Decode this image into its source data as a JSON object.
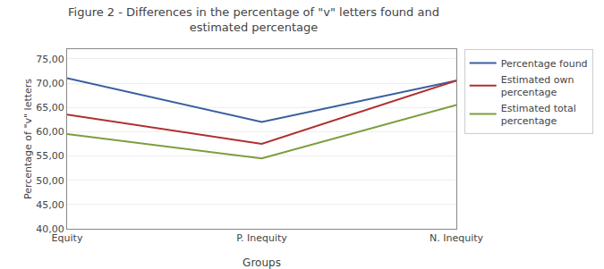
{
  "chart_data": {
    "type": "line",
    "title": "Figure 2 - Differences in the percentage of \"v\" letters found and\nestimated percentage",
    "x_label": "Groups",
    "y_label": "Percentage of \"v\" letters",
    "categories": [
      "Equity",
      "P. Inequity",
      "N. Inequity"
    ],
    "series": [
      {
        "name": "Percentage found",
        "color": "#3A5F9F",
        "values": [
          71.0,
          62.0,
          70.5
        ]
      },
      {
        "name": "Estimated own\npercentage",
        "color": "#B03030",
        "values": [
          63.5,
          57.5,
          70.5
        ]
      },
      {
        "name": "Estimated total\npercentage",
        "color": "#7B9E3E",
        "values": [
          59.5,
          54.5,
          65.5
        ]
      }
    ],
    "ylim": [
      40.0,
      77.0
    ],
    "yticks": [
      {
        "value": 40,
        "label": "40,00"
      },
      {
        "value": 45,
        "label": "45,00"
      },
      {
        "value": 50,
        "label": "50,00"
      },
      {
        "value": 55,
        "label": "55,00"
      },
      {
        "value": 60,
        "label": "60,00"
      },
      {
        "value": 65,
        "label": "65,00"
      },
      {
        "value": 70,
        "label": "70,00"
      },
      {
        "value": 75,
        "label": "75,00"
      }
    ],
    "grid": "y",
    "legend": "right"
  }
}
